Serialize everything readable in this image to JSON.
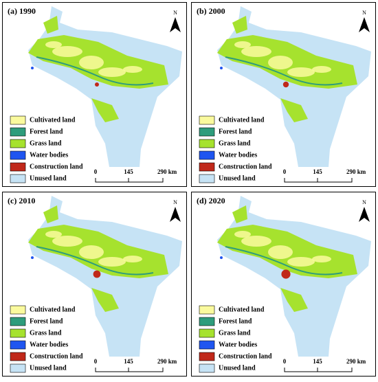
{
  "panels": [
    {
      "title": "(a) 1990"
    },
    {
      "title": "(b) 2000"
    },
    {
      "title": "(c) 2010"
    },
    {
      "title": "(d) 2020"
    }
  ],
  "legend": [
    {
      "label": "Cultivated land",
      "color": "#fafa9e"
    },
    {
      "label": "Forest land",
      "color": "#2e9c7c"
    },
    {
      "label": "Grass land",
      "color": "#a6e22e"
    },
    {
      "label": "Water bodies",
      "color": "#1f55f0"
    },
    {
      "label": "Construction land",
      "color": "#c0281a"
    },
    {
      "label": "Unused land",
      "color": "#c6e3f5"
    }
  ],
  "scale": {
    "labels": [
      "0",
      "145",
      "290 km"
    ]
  },
  "north": "N"
}
